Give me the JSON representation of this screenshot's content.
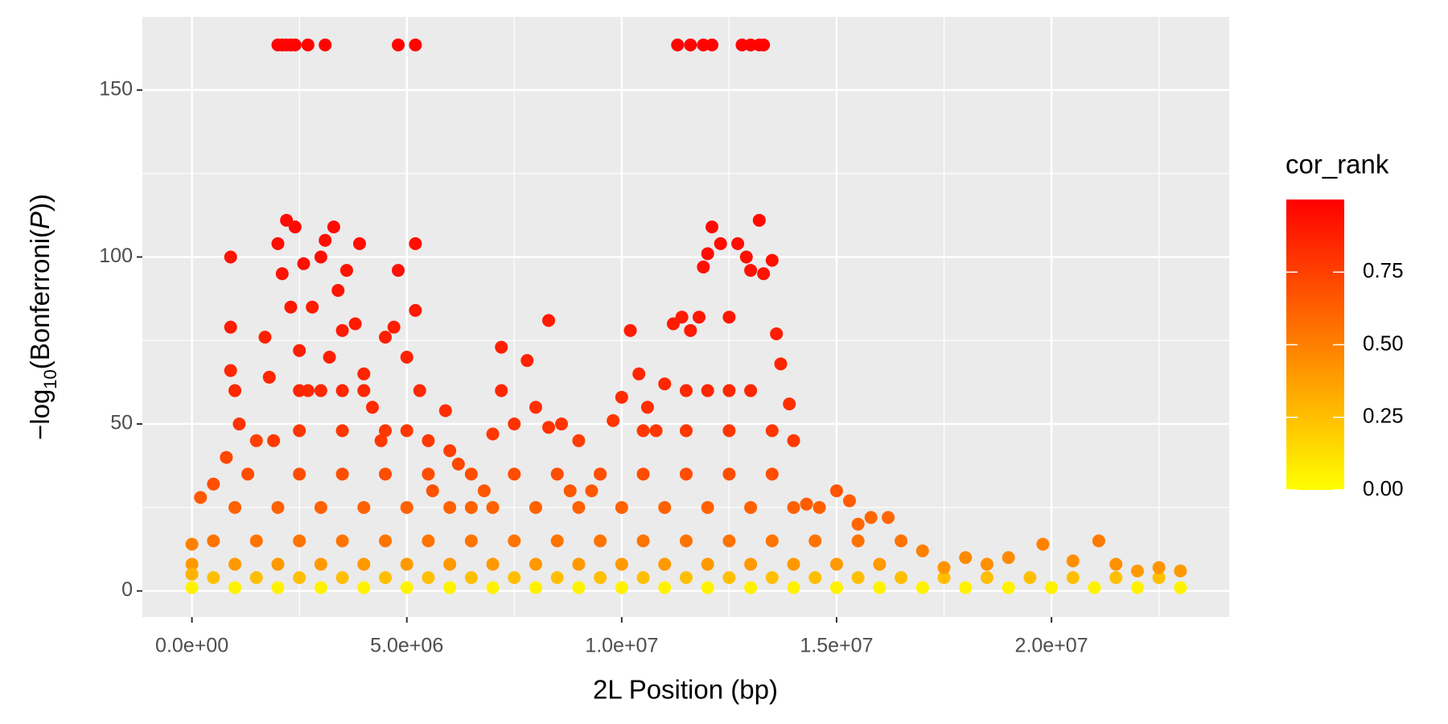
{
  "chart_data": {
    "type": "scatter",
    "x_label": "2L Position (bp)",
    "y_label": {
      "prefix": "−log",
      "sub": "10",
      "mid": "(Bonferroni(",
      "italic": "P",
      "suffix": "))"
    },
    "legend_title": "cor_rank",
    "xlim": [
      -1153000,
      24135000
    ],
    "ylim": [
      -7.8,
      171.9
    ],
    "xticks": [
      {
        "value": 0,
        "label": "0.0e+00"
      },
      {
        "value": 5000000,
        "label": "5.0e+06"
      },
      {
        "value": 10000000,
        "label": "1.0e+07"
      },
      {
        "value": 15000000,
        "label": "1.5e+07"
      },
      {
        "value": 20000000,
        "label": "2.0e+07"
      }
    ],
    "yticks": [
      0,
      50,
      100,
      150
    ],
    "x_minor_grid": [
      2500000,
      7500000,
      12500000,
      17500000,
      22500000
    ],
    "y_minor_grid": [
      25,
      75,
      125
    ],
    "grid": true,
    "colorlim": [
      0,
      1
    ],
    "colorticks": [
      {
        "value": 0,
        "label": "0.00"
      },
      {
        "value": 0.25,
        "label": "0.25"
      },
      {
        "value": 0.5,
        "label": "0.50"
      },
      {
        "value": 0.75,
        "label": "0.75"
      }
    ],
    "color_low": "#ffff00",
    "color_high": "#ff0000",
    "points": [
      [
        0,
        1,
        0.05
      ],
      [
        1000000,
        1,
        0.05
      ],
      [
        2000000,
        1,
        0.05
      ],
      [
        3000000,
        1,
        0.05
      ],
      [
        4000000,
        1,
        0.05
      ],
      [
        5000000,
        1,
        0.05
      ],
      [
        6000000,
        1,
        0.05
      ],
      [
        7000000,
        1,
        0.05
      ],
      [
        8000000,
        1,
        0.05
      ],
      [
        9000000,
        1,
        0.05
      ],
      [
        10000000,
        1,
        0.05
      ],
      [
        11000000,
        1,
        0.05
      ],
      [
        12000000,
        1,
        0.05
      ],
      [
        13000000,
        1,
        0.05
      ],
      [
        14000000,
        1,
        0.05
      ],
      [
        15000000,
        1,
        0.05
      ],
      [
        16000000,
        1,
        0.05
      ],
      [
        17000000,
        1,
        0.05
      ],
      [
        18000000,
        1,
        0.05
      ],
      [
        19000000,
        1,
        0.05
      ],
      [
        20000000,
        1,
        0.05
      ],
      [
        21000000,
        1,
        0.05
      ],
      [
        22000000,
        1,
        0.05
      ],
      [
        23000000,
        1,
        0.05
      ],
      [
        500000,
        4,
        0.25
      ],
      [
        1500000,
        4,
        0.25
      ],
      [
        2500000,
        4,
        0.25
      ],
      [
        3500000,
        4,
        0.25
      ],
      [
        4500000,
        4,
        0.25
      ],
      [
        5500000,
        4,
        0.25
      ],
      [
        6500000,
        4,
        0.25
      ],
      [
        7500000,
        4,
        0.25
      ],
      [
        8500000,
        4,
        0.25
      ],
      [
        9500000,
        4,
        0.25
      ],
      [
        10500000,
        4,
        0.25
      ],
      [
        11500000,
        4,
        0.25
      ],
      [
        12500000,
        4,
        0.25
      ],
      [
        13500000,
        4,
        0.25
      ],
      [
        14500000,
        4,
        0.25
      ],
      [
        15500000,
        4,
        0.25
      ],
      [
        16500000,
        4,
        0.25
      ],
      [
        17500000,
        4,
        0.25
      ],
      [
        18500000,
        4,
        0.25
      ],
      [
        19500000,
        4,
        0.25
      ],
      [
        20500000,
        4,
        0.25
      ],
      [
        21500000,
        4,
        0.25
      ],
      [
        22500000,
        4,
        0.25
      ],
      [
        0,
        8,
        0.4
      ],
      [
        1000000,
        8,
        0.4
      ],
      [
        2000000,
        8,
        0.4
      ],
      [
        3000000,
        8,
        0.4
      ],
      [
        4000000,
        8,
        0.4
      ],
      [
        5000000,
        8,
        0.4
      ],
      [
        6000000,
        8,
        0.4
      ],
      [
        7000000,
        8,
        0.4
      ],
      [
        8000000,
        8,
        0.4
      ],
      [
        9000000,
        8,
        0.4
      ],
      [
        10000000,
        8,
        0.4
      ],
      [
        11000000,
        8,
        0.4
      ],
      [
        12000000,
        8,
        0.4
      ],
      [
        13000000,
        8,
        0.4
      ],
      [
        14000000,
        8,
        0.4
      ],
      [
        15000000,
        8,
        0.4
      ],
      [
        16000000,
        8,
        0.4
      ],
      [
        500000,
        15,
        0.55
      ],
      [
        1500000,
        15,
        0.55
      ],
      [
        2500000,
        15,
        0.55
      ],
      [
        3500000,
        15,
        0.55
      ],
      [
        4500000,
        15,
        0.55
      ],
      [
        5500000,
        15,
        0.55
      ],
      [
        6500000,
        15,
        0.55
      ],
      [
        7500000,
        15,
        0.55
      ],
      [
        8500000,
        15,
        0.55
      ],
      [
        9500000,
        15,
        0.55
      ],
      [
        10500000,
        15,
        0.55
      ],
      [
        11500000,
        15,
        0.55
      ],
      [
        12500000,
        15,
        0.55
      ],
      [
        13500000,
        15,
        0.55
      ],
      [
        14500000,
        15,
        0.55
      ],
      [
        15500000,
        15,
        0.55
      ],
      [
        1000000,
        25,
        0.62
      ],
      [
        2000000,
        25,
        0.62
      ],
      [
        3000000,
        25,
        0.62
      ],
      [
        4000000,
        25,
        0.62
      ],
      [
        5000000,
        25,
        0.62
      ],
      [
        6000000,
        25,
        0.62
      ],
      [
        7000000,
        25,
        0.62
      ],
      [
        8000000,
        25,
        0.62
      ],
      [
        9000000,
        25,
        0.62
      ],
      [
        10000000,
        25,
        0.62
      ],
      [
        11000000,
        25,
        0.62
      ],
      [
        12000000,
        25,
        0.62
      ],
      [
        13000000,
        25,
        0.62
      ],
      [
        14000000,
        25,
        0.62
      ],
      [
        2500000,
        35,
        0.7
      ],
      [
        3500000,
        35,
        0.7
      ],
      [
        4500000,
        35,
        0.7
      ],
      [
        5500000,
        35,
        0.7
      ],
      [
        6500000,
        35,
        0.7
      ],
      [
        7500000,
        35,
        0.7
      ],
      [
        8500000,
        35,
        0.7
      ],
      [
        9500000,
        35,
        0.7
      ],
      [
        10500000,
        35,
        0.7
      ],
      [
        11500000,
        35,
        0.7
      ],
      [
        12500000,
        35,
        0.7
      ],
      [
        13500000,
        35,
        0.7
      ],
      [
        2500000,
        48,
        0.79
      ],
      [
        3500000,
        48,
        0.79
      ],
      [
        4500000,
        48,
        0.79
      ],
      [
        5000000,
        48,
        0.79
      ],
      [
        10500000,
        48,
        0.79
      ],
      [
        11500000,
        48,
        0.79
      ],
      [
        12500000,
        48,
        0.79
      ],
      [
        13500000,
        48,
        0.79
      ],
      [
        2500000,
        60,
        0.85
      ],
      [
        3000000,
        60,
        0.85
      ],
      [
        3500000,
        60,
        0.85
      ],
      [
        4000000,
        60,
        0.85
      ],
      [
        11500000,
        60,
        0.85
      ],
      [
        12000000,
        60,
        0.85
      ],
      [
        12500000,
        60,
        0.85
      ],
      [
        13000000,
        60,
        0.85
      ],
      [
        0,
        14,
        0.5
      ],
      [
        0,
        5,
        0.3
      ],
      [
        200000,
        28,
        0.65
      ],
      [
        500000,
        32,
        0.7
      ],
      [
        800000,
        40,
        0.72
      ],
      [
        900000,
        100,
        0.93
      ],
      [
        900000,
        79,
        0.9
      ],
      [
        900000,
        66,
        0.85
      ],
      [
        1000000,
        60,
        0.85
      ],
      [
        1100000,
        50,
        0.8
      ],
      [
        1300000,
        35,
        0.7
      ],
      [
        1500000,
        45,
        0.75
      ],
      [
        1700000,
        76,
        0.88
      ],
      [
        1800000,
        64,
        0.85
      ],
      [
        1900000,
        45,
        0.78
      ],
      [
        2000000,
        104,
        0.95
      ],
      [
        2100000,
        95,
        0.93
      ],
      [
        2200000,
        111,
        0.96
      ],
      [
        2300000,
        85,
        0.91
      ],
      [
        2400000,
        109,
        0.96
      ],
      [
        2500000,
        72,
        0.88
      ],
      [
        2600000,
        98,
        0.94
      ],
      [
        2700000,
        60,
        0.84
      ],
      [
        2800000,
        85,
        0.9
      ],
      [
        3000000,
        100,
        0.95
      ],
      [
        3100000,
        105,
        0.95
      ],
      [
        3200000,
        70,
        0.88
      ],
      [
        3300000,
        109,
        0.96
      ],
      [
        3400000,
        90,
        0.92
      ],
      [
        3500000,
        78,
        0.9
      ],
      [
        3600000,
        96,
        0.93
      ],
      [
        3800000,
        80,
        0.9
      ],
      [
        3900000,
        104,
        0.95
      ],
      [
        4000000,
        65,
        0.86
      ],
      [
        4200000,
        55,
        0.83
      ],
      [
        4400000,
        45,
        0.78
      ],
      [
        4500000,
        76,
        0.88
      ],
      [
        4700000,
        79,
        0.89
      ],
      [
        4800000,
        96,
        0.94
      ],
      [
        5000000,
        70,
        0.87
      ],
      [
        5200000,
        104,
        0.95
      ],
      [
        5200000,
        84,
        0.91
      ],
      [
        5300000,
        60,
        0.84
      ],
      [
        5500000,
        45,
        0.78
      ],
      [
        5600000,
        30,
        0.68
      ],
      [
        5900000,
        54,
        0.82
      ],
      [
        6000000,
        42,
        0.76
      ],
      [
        6200000,
        38,
        0.72
      ],
      [
        6500000,
        25,
        0.62
      ],
      [
        6800000,
        30,
        0.66
      ],
      [
        7000000,
        47,
        0.78
      ],
      [
        7200000,
        73,
        0.88
      ],
      [
        7200000,
        60,
        0.85
      ],
      [
        7500000,
        50,
        0.8
      ],
      [
        7800000,
        69,
        0.87
      ],
      [
        8000000,
        55,
        0.82
      ],
      [
        8300000,
        81,
        0.9
      ],
      [
        8300000,
        49,
        0.8
      ],
      [
        8600000,
        50,
        0.8
      ],
      [
        8800000,
        30,
        0.66
      ],
      [
        9000000,
        45,
        0.76
      ],
      [
        9300000,
        30,
        0.66
      ],
      [
        9500000,
        35,
        0.7
      ],
      [
        9800000,
        51,
        0.8
      ],
      [
        10000000,
        58,
        0.83
      ],
      [
        10200000,
        78,
        0.89
      ],
      [
        10400000,
        65,
        0.85
      ],
      [
        10600000,
        55,
        0.82
      ],
      [
        10800000,
        48,
        0.79
      ],
      [
        11000000,
        62,
        0.85
      ],
      [
        11200000,
        80,
        0.9
      ],
      [
        11400000,
        82,
        0.9
      ],
      [
        11600000,
        78,
        0.9
      ],
      [
        11800000,
        82,
        0.91
      ],
      [
        11900000,
        97,
        0.94
      ],
      [
        12000000,
        101,
        0.95
      ],
      [
        12100000,
        109,
        0.96
      ],
      [
        12300000,
        104,
        0.95
      ],
      [
        12500000,
        82,
        0.91
      ],
      [
        12700000,
        104,
        0.95
      ],
      [
        12900000,
        100,
        0.94
      ],
      [
        13000000,
        96,
        0.94
      ],
      [
        13200000,
        111,
        0.96
      ],
      [
        13300000,
        95,
        0.93
      ],
      [
        13500000,
        99,
        0.94
      ],
      [
        13600000,
        77,
        0.89
      ],
      [
        13700000,
        68,
        0.86
      ],
      [
        13900000,
        56,
        0.82
      ],
      [
        14000000,
        45,
        0.78
      ],
      [
        14300000,
        26,
        0.64
      ],
      [
        14600000,
        25,
        0.63
      ],
      [
        15000000,
        30,
        0.67
      ],
      [
        15300000,
        27,
        0.64
      ],
      [
        15500000,
        20,
        0.6
      ],
      [
        15800000,
        22,
        0.6
      ],
      [
        16200000,
        22,
        0.6
      ],
      [
        16500000,
        15,
        0.55
      ],
      [
        17000000,
        12,
        0.5
      ],
      [
        17500000,
        7,
        0.42
      ],
      [
        18000000,
        10,
        0.46
      ],
      [
        18500000,
        8,
        0.43
      ],
      [
        19000000,
        10,
        0.46
      ],
      [
        19800000,
        14,
        0.5
      ],
      [
        20500000,
        9,
        0.44
      ],
      [
        21100000,
        15,
        0.52
      ],
      [
        21500000,
        8,
        0.43
      ],
      [
        22000000,
        6,
        0.4
      ],
      [
        22500000,
        7,
        0.42
      ],
      [
        23000000,
        6,
        0.4
      ],
      [
        2000000,
        163.5,
        0.99
      ],
      [
        2100000,
        163.5,
        0.99
      ],
      [
        2200000,
        163.5,
        0.99
      ],
      [
        2300000,
        163.5,
        0.99
      ],
      [
        2400000,
        163.5,
        0.99
      ],
      [
        2700000,
        163.5,
        0.99
      ],
      [
        3100000,
        163.5,
        0.99
      ],
      [
        4800000,
        163.5,
        0.99
      ],
      [
        5200000,
        163.5,
        0.99
      ],
      [
        11300000,
        163.5,
        0.99
      ],
      [
        11600000,
        163.5,
        0.99
      ],
      [
        11900000,
        163.5,
        0.99
      ],
      [
        12100000,
        163.5,
        0.99
      ],
      [
        12800000,
        163.5,
        0.99
      ],
      [
        13000000,
        163.5,
        0.99
      ],
      [
        13200000,
        163.5,
        0.99
      ],
      [
        13300000,
        163.5,
        0.99
      ]
    ]
  }
}
